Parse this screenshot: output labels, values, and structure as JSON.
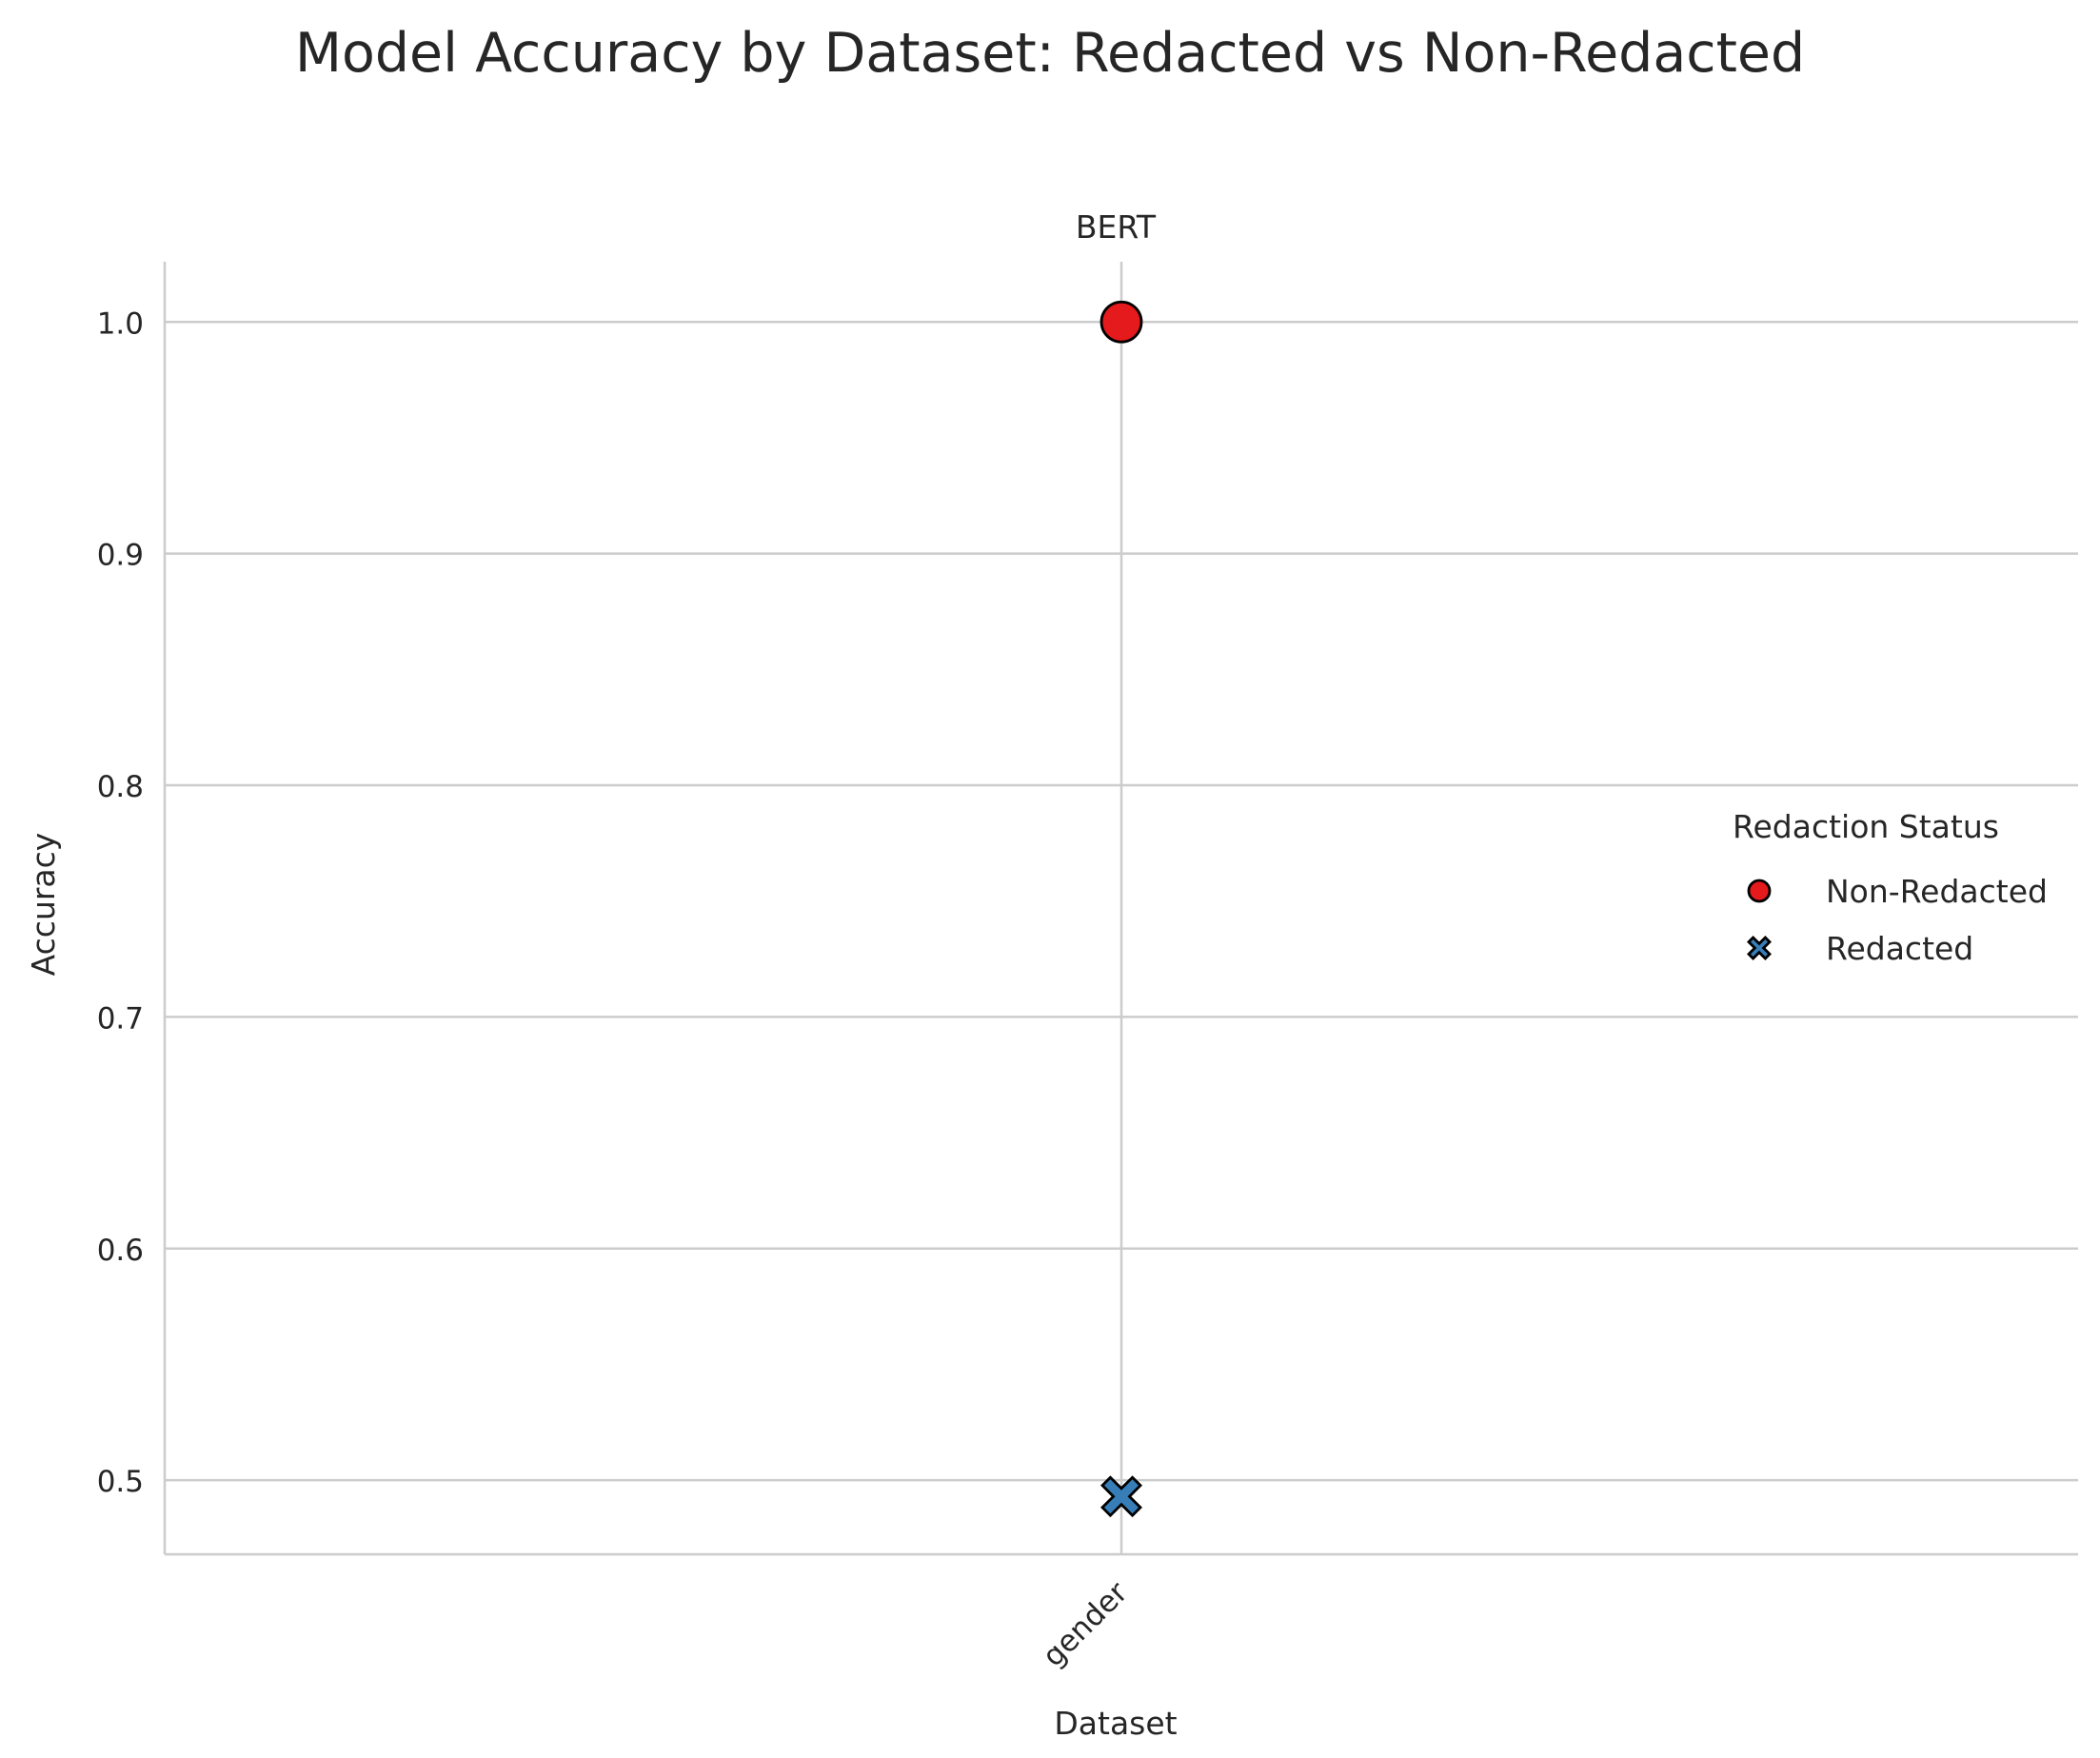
{
  "chart_data": {
    "type": "scatter",
    "title": "Model Accuracy by Dataset: Redacted vs Non-Redacted",
    "panel_title": "BERT",
    "xlabel": "Dataset",
    "ylabel": "Accuracy",
    "categories": [
      "gender"
    ],
    "ylim": [
      0.468,
      1.026
    ],
    "yticks": [
      0.5,
      0.6,
      0.7,
      0.8,
      0.9,
      1.0
    ],
    "ytick_labels": [
      "0.5",
      "0.6",
      "0.7",
      "0.8",
      "0.9",
      "1.0"
    ],
    "grid": true,
    "legend": {
      "title": "Redaction Status",
      "placement": "right"
    },
    "series": [
      {
        "name": "Non-Redacted",
        "marker": "circle",
        "color": "#e41a1c",
        "points": [
          {
            "x": "gender",
            "y": 1.0
          }
        ]
      },
      {
        "name": "Redacted",
        "marker": "x",
        "color": "#377eb8",
        "points": [
          {
            "x": "gender",
            "y": 0.493
          }
        ]
      }
    ]
  }
}
